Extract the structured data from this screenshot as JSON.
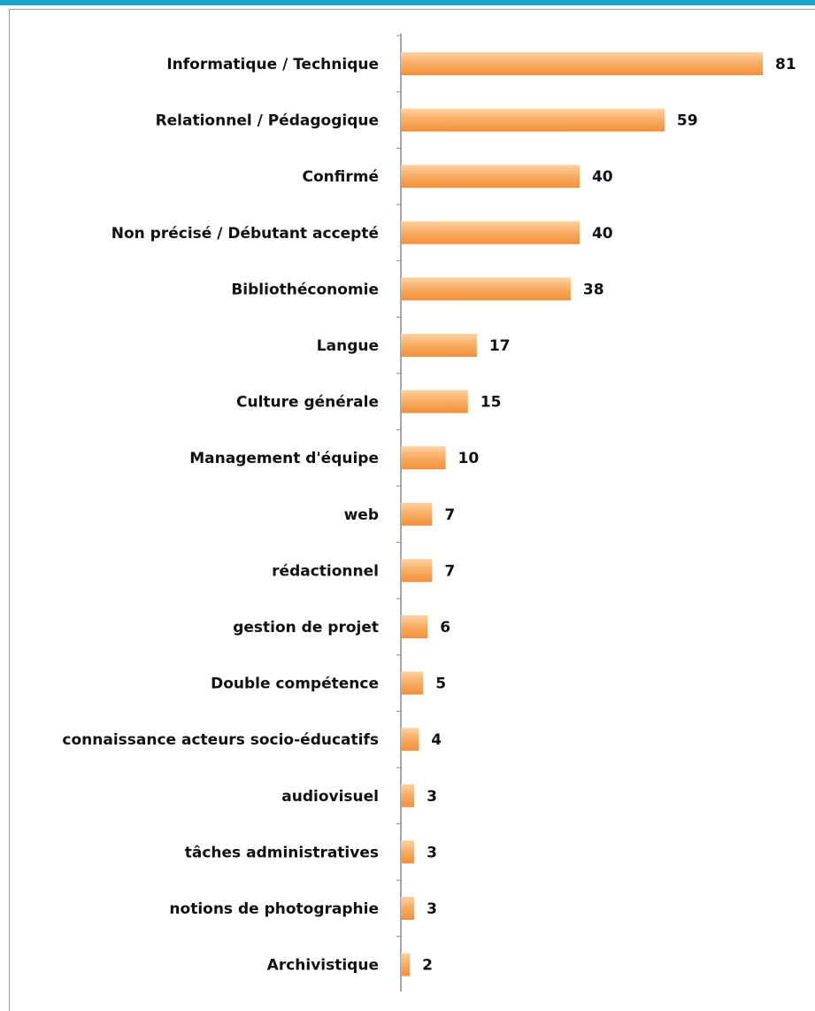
{
  "chart_data": {
    "type": "barh",
    "categories": [
      "Informatique / Technique",
      "Relationnel / Pédagogique",
      "Confirmé",
      "Non précisé / Débutant accepté",
      "Bibliothéconomie",
      "Langue",
      "Culture générale",
      "Management d'équipe",
      "web",
      "rédactionnel",
      "gestion de projet",
      "Double compétence",
      "connaissance acteurs socio-éducatifs",
      "audiovisuel",
      "tâches administratives",
      "notions de photographie",
      "Archivistique"
    ],
    "values": [
      81,
      59,
      40,
      40,
      38,
      17,
      15,
      10,
      7,
      7,
      6,
      5,
      4,
      3,
      3,
      3,
      2
    ],
    "color": "#f79a46"
  }
}
